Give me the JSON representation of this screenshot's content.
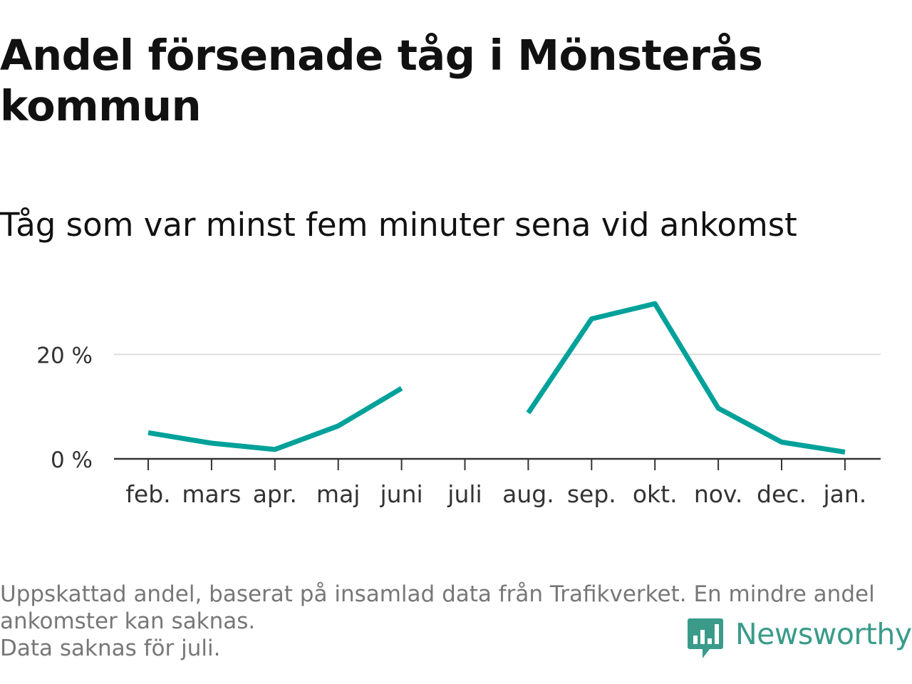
{
  "title": "Andel försenade tåg i Mönsterås kommun",
  "subtitle": "Tåg som var minst fem minuter sena vid ankomst",
  "footnote": {
    "line1": "Uppskattad andel, baserat på insamlad data från Trafikverket. En mindre andel ankomster kan saknas.",
    "line2": "Data saknas för juli."
  },
  "logo": {
    "text": "Newsworthy",
    "icon": "bar-chart-speech-bubble-icon",
    "color": "#3a9b8a"
  },
  "chart_data": {
    "type": "line",
    "title": "Andel försenade tåg i Mönsterås kommun",
    "subtitle": "Tåg som var minst fem minuter sena vid ankomst",
    "xlabel": "",
    "ylabel": "",
    "categories": [
      "feb.",
      "mars",
      "apr.",
      "maj",
      "juni",
      "juli",
      "aug.",
      "sep.",
      "okt.",
      "nov.",
      "dec.",
      "jan."
    ],
    "series": [
      {
        "values": [
          5.0,
          3.0,
          1.8,
          6.3,
          13.5,
          null,
          8.8,
          26.8,
          29.7,
          9.7,
          3.2,
          1.3
        ],
        "color": "#00a19a"
      }
    ],
    "ylim": [
      0,
      30
    ],
    "yticks": [
      0,
      20
    ],
    "ytick_labels": [
      "0 %",
      "20 %"
    ],
    "grid": true,
    "legend": "none"
  }
}
